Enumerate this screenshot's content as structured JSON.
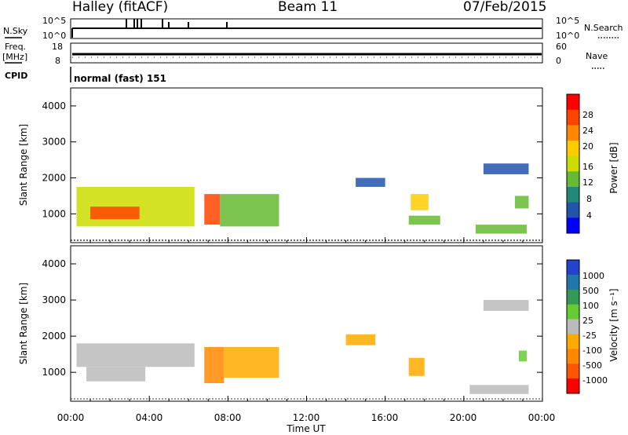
{
  "header": {
    "station_title": "Halley (fitACF)",
    "beam_title": "Beam 11",
    "date_title": "07/Feb/2015"
  },
  "nsky_panel": {
    "left_label": "N.Sky",
    "right_label": "N.Search",
    "left_ticks": [
      "10^5",
      "10^0"
    ],
    "right_ticks": [
      "10^5",
      "10^0"
    ]
  },
  "freq_panel": {
    "left_label_line1": "Freq.",
    "left_label_line2": "[MHz]",
    "right_label": "Nave",
    "left_ticks": [
      "18",
      "8"
    ],
    "right_ticks": [
      "60",
      "0"
    ]
  },
  "cpid_panel": {
    "label": "CPID",
    "mode_text": "normal (fast) 151"
  },
  "x_axis": {
    "title": "Time UT",
    "tick_labels": [
      "00:00",
      "04:00",
      "08:00",
      "12:00",
      "16:00",
      "20:00",
      "00:00"
    ]
  },
  "power_colorbar": {
    "title": "Power [dB]",
    "tick_labels": [
      "28",
      "24",
      "20",
      "16",
      "12",
      "8",
      "4"
    ],
    "colors": [
      "#ff0000",
      "#ff4400",
      "#ff8800",
      "#ffcc00",
      "#ccdd00",
      "#66bb33",
      "#228877",
      "#2255aa",
      "#0000ff"
    ]
  },
  "velocity_colorbar": {
    "title": "Velocity [m s⁻¹]",
    "tick_labels": [
      "1000",
      "500",
      "100",
      "25",
      "-25",
      "-100",
      "-500",
      "-1000"
    ],
    "colors": [
      "#2244cc",
      "#2277aa",
      "#339955",
      "#66cc33",
      "#bbbbbb",
      "#ffaa00",
      "#ff8800",
      "#ff5500",
      "#ff0000"
    ]
  },
  "chart_data": [
    {
      "type": "heatmap",
      "title": "Beam 11",
      "xlabel": "Time UT",
      "ylabel": "Slant Range [km]",
      "xlim": [
        "00:00",
        "24:00"
      ],
      "ylim": [
        200,
        4500
      ],
      "y_ticks": [
        1000,
        2000,
        3000,
        4000
      ],
      "quantity": "Power [dB]",
      "color_range": [
        0,
        30
      ],
      "regions": [
        {
          "t0": 0.3,
          "t1": 6.3,
          "r0": 650,
          "r1": 1750,
          "value": 14
        },
        {
          "t0": 1.0,
          "t1": 3.5,
          "r0": 850,
          "r1": 1200,
          "value": 24
        },
        {
          "t0": 6.8,
          "t1": 7.6,
          "r0": 700,
          "r1": 1550,
          "value": 26
        },
        {
          "t0": 7.6,
          "t1": 10.6,
          "r0": 650,
          "r1": 1550,
          "value": 10
        },
        {
          "t0": 14.5,
          "t1": 16.0,
          "r0": 1750,
          "r1": 2000,
          "value": 6
        },
        {
          "t0": 17.3,
          "t1": 18.2,
          "r0": 1100,
          "r1": 1550,
          "value": 18
        },
        {
          "t0": 17.2,
          "t1": 18.8,
          "r0": 700,
          "r1": 950,
          "value": 12
        },
        {
          "t0": 20.6,
          "t1": 23.2,
          "r0": 450,
          "r1": 700,
          "value": 10
        },
        {
          "t0": 22.6,
          "t1": 23.3,
          "r0": 1150,
          "r1": 1500,
          "value": 10
        },
        {
          "t0": 21.0,
          "t1": 23.3,
          "r0": 2100,
          "r1": 2400,
          "value": 4
        }
      ]
    },
    {
      "type": "heatmap",
      "xlabel": "Time UT",
      "ylabel": "Slant Range [km]",
      "xlim": [
        "00:00",
        "24:00"
      ],
      "ylim": [
        200,
        4500
      ],
      "y_ticks": [
        1000,
        2000,
        3000,
        4000
      ],
      "quantity": "Velocity [m s⁻¹]",
      "color_range": [
        -1000,
        1000
      ],
      "regions": [
        {
          "t0": 0.3,
          "t1": 6.3,
          "r0": 1150,
          "r1": 1800,
          "value": 0
        },
        {
          "t0": 0.8,
          "t1": 3.8,
          "r0": 750,
          "r1": 1150,
          "value": 60
        },
        {
          "t0": 6.8,
          "t1": 7.8,
          "r0": 700,
          "r1": 1700,
          "value": -400
        },
        {
          "t0": 7.8,
          "t1": 10.6,
          "r0": 850,
          "r1": 1700,
          "value": -150
        },
        {
          "t0": 14.0,
          "t1": 15.5,
          "r0": 1750,
          "r1": 2050,
          "value": -120
        },
        {
          "t0": 17.2,
          "t1": 18.0,
          "r0": 900,
          "r1": 1400,
          "value": -150
        },
        {
          "t0": 20.3,
          "t1": 23.3,
          "r0": 400,
          "r1": 650,
          "value": 0
        },
        {
          "t0": 21.0,
          "t1": 23.3,
          "r0": 2700,
          "r1": 3000,
          "value": 0
        },
        {
          "t0": 22.8,
          "t1": 23.2,
          "r0": 1300,
          "r1": 1600,
          "value": 300
        }
      ]
    }
  ]
}
